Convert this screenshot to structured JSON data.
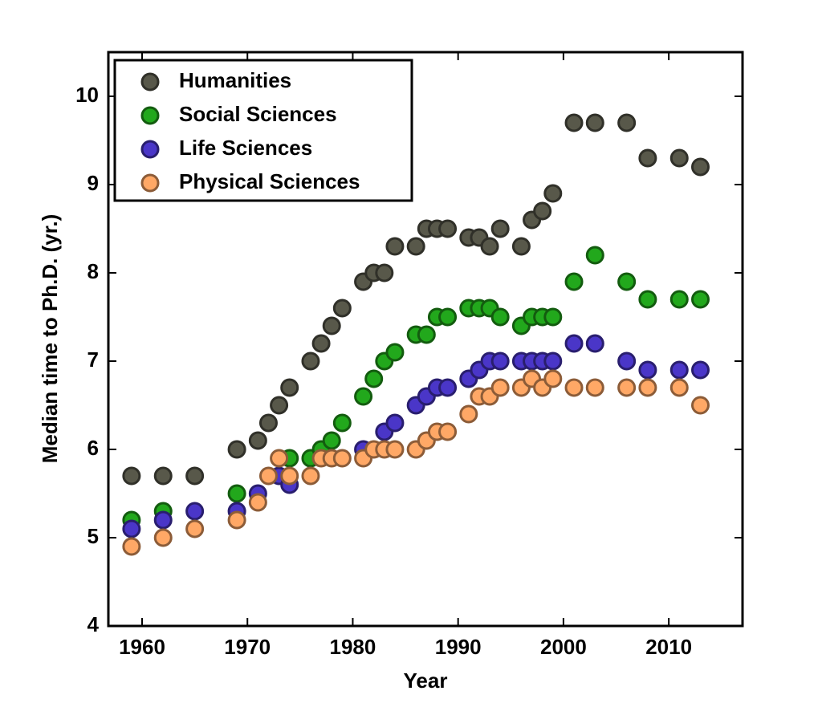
{
  "chart_data": {
    "type": "scatter",
    "xlabel": "Year",
    "ylabel": "Median time to Ph.D. (yr.)",
    "x": [
      1959,
      1962,
      1965,
      1969,
      1971,
      1972,
      1973,
      1974,
      1976,
      1977,
      1978,
      1979,
      1981,
      1982,
      1983,
      1984,
      1986,
      1987,
      1988,
      1989,
      1991,
      1992,
      1993,
      1994,
      1996,
      1997,
      1998,
      1999,
      2001,
      2003,
      2006,
      2008,
      2011,
      2013
    ],
    "series": [
      {
        "name": "Humanities",
        "color": "#58584a",
        "values": [
          5.7,
          5.7,
          5.7,
          6.0,
          6.1,
          6.3,
          6.5,
          6.7,
          7.0,
          7.2,
          7.4,
          7.6,
          7.9,
          8.0,
          8.0,
          8.3,
          8.3,
          8.5,
          8.5,
          8.5,
          8.4,
          8.4,
          8.3,
          8.5,
          8.3,
          8.6,
          8.7,
          8.9,
          9.7,
          9.7,
          9.7,
          9.3,
          9.3,
          9.2
        ]
      },
      {
        "name": "Social Sciences",
        "color": "#22a81c",
        "values": [
          5.2,
          5.3,
          null,
          5.5,
          null,
          null,
          null,
          5.9,
          5.9,
          6.0,
          6.1,
          6.3,
          6.6,
          6.8,
          7.0,
          7.1,
          7.3,
          7.3,
          7.5,
          7.5,
          7.6,
          7.6,
          7.6,
          7.5,
          7.4,
          7.5,
          7.5,
          7.5,
          7.9,
          8.2,
          7.9,
          7.7,
          7.7,
          7.7
        ]
      },
      {
        "name": "Life Sciences",
        "color": "#4a36c8",
        "values": [
          5.1,
          5.2,
          5.3,
          5.3,
          5.5,
          null,
          5.7,
          5.6,
          null,
          null,
          null,
          null,
          6.0,
          null,
          6.2,
          6.3,
          6.5,
          6.6,
          6.7,
          6.7,
          6.8,
          6.9,
          7.0,
          7.0,
          7.0,
          7.0,
          7.0,
          7.0,
          7.2,
          7.2,
          7.0,
          6.9,
          6.9,
          6.9
        ]
      },
      {
        "name": "Physical Sciences",
        "color": "#ffa866",
        "values": [
          4.9,
          5.0,
          5.1,
          5.2,
          5.4,
          5.7,
          5.9,
          5.7,
          5.7,
          5.9,
          5.9,
          5.9,
          5.9,
          6.0,
          6.0,
          6.0,
          6.0,
          6.1,
          6.2,
          6.2,
          6.4,
          6.6,
          6.6,
          6.7,
          6.7,
          6.8,
          6.7,
          6.8,
          6.7,
          6.7,
          6.7,
          6.7,
          6.7,
          6.5
        ]
      }
    ],
    "xlim": [
      1956.8,
      2017
    ],
    "ylim": [
      4,
      10.5
    ],
    "xticks": [
      1960,
      1970,
      1980,
      1990,
      2000,
      2010
    ],
    "yticks": [
      4,
      5,
      6,
      7,
      8,
      9,
      10
    ],
    "legend": "upper-left"
  }
}
